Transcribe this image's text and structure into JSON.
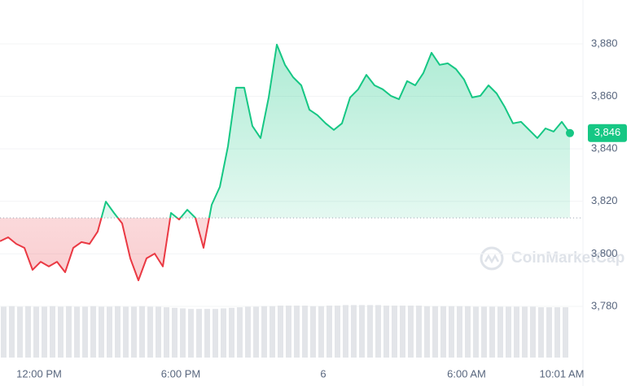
{
  "chart_data": {
    "type": "line",
    "watermark": "CoinMarketCap",
    "values": [
      3804.8,
      3806.3,
      3803.8,
      3802.3,
      3793.9,
      3797.0,
      3795.2,
      3797.0,
      3793.0,
      3802.3,
      3804.5,
      3803.8,
      3808.5,
      3819.9,
      3815.6,
      3811.6,
      3798.3,
      3789.9,
      3798.3,
      3800.1,
      3795.2,
      3815.6,
      3813.1,
      3816.8,
      3813.7,
      3802.3,
      3818.7,
      3825.5,
      3841.0,
      3863.3,
      3863.3,
      3848.7,
      3844.1,
      3859.6,
      3879.7,
      3872.0,
      3867.3,
      3864.2,
      3854.9,
      3852.8,
      3849.7,
      3847.2,
      3849.7,
      3859.6,
      3862.7,
      3868.2,
      3864.2,
      3862.7,
      3860.2,
      3858.9,
      3865.8,
      3864.2,
      3868.9,
      3876.6,
      3872.0,
      3872.6,
      3870.4,
      3866.4,
      3859.6,
      3860.2,
      3864.2,
      3861.1,
      3855.9,
      3849.7,
      3850.3,
      3847.2,
      3844.1,
      3847.8,
      3846.6,
      3850.3,
      3846
    ],
    "baseline": 3813.7,
    "last_label": "3,846",
    "up_color": "#16c784",
    "down_color": "#ea3943",
    "xlim": [
      0,
      70
    ],
    "xticks": [
      {
        "value": 4.8,
        "label": "12:00 PM"
      },
      {
        "value": 22.2,
        "label": "6:00 PM"
      },
      {
        "value": 39.7,
        "label": "6"
      },
      {
        "value": 57.3,
        "label": "6:00 AM"
      },
      {
        "value": 69,
        "label": "10:01 AM"
      }
    ],
    "ylim": [
      3760.5,
      3896.7
    ],
    "yticks": [
      {
        "value": 3780,
        "label": "3,780"
      },
      {
        "value": 3800,
        "label": "3,800"
      },
      {
        "value": 3820,
        "label": "3,820"
      },
      {
        "value": 3840,
        "label": "3,840"
      },
      {
        "value": 3860,
        "label": "3,860"
      },
      {
        "value": 3880,
        "label": "3,880"
      }
    ],
    "grid": true,
    "volume": {
      "color": "#e3e5e9",
      "ylim": [
        0,
        100
      ],
      "values": [
        92,
        93,
        92,
        93,
        92,
        92,
        93,
        92,
        93,
        92,
        92,
        93,
        92,
        92,
        93,
        92,
        92,
        93,
        92,
        92,
        91,
        90,
        89,
        88,
        88,
        88,
        88,
        89,
        90,
        91,
        92,
        92,
        93,
        93,
        94,
        94,
        94,
        94,
        93,
        93,
        94,
        94,
        95,
        95,
        95,
        95,
        95,
        94,
        94,
        94,
        94,
        94,
        93,
        93,
        93,
        93,
        93,
        93,
        92,
        92,
        92,
        92,
        92,
        92,
        92,
        92,
        91,
        91,
        91,
        91
      ]
    }
  }
}
